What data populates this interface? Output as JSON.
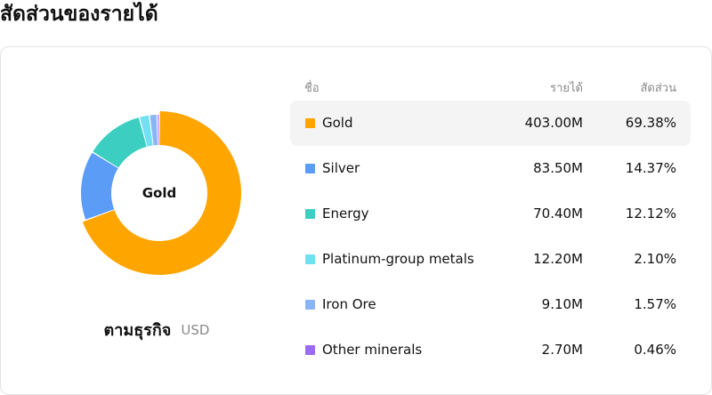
{
  "page": {
    "title": "สัดส่วนของรายได้"
  },
  "chart": {
    "center_label": "Gold",
    "caption": "ตามธุรกิจ",
    "unit": "USD"
  },
  "table": {
    "headers": {
      "name": "ชื่อ",
      "value": "รายได้",
      "share": "สัดส่วน"
    },
    "rows": [
      {
        "name": "Gold",
        "value": "403.00M",
        "share": "69.38%"
      },
      {
        "name": "Silver",
        "value": "83.50M",
        "share": "14.37%"
      },
      {
        "name": "Energy",
        "value": "70.40M",
        "share": "12.12%"
      },
      {
        "name": "Platinum-group metals",
        "value": "12.20M",
        "share": "2.10%"
      },
      {
        "name": "Iron Ore",
        "value": "9.10M",
        "share": "1.57%"
      },
      {
        "name": "Other minerals",
        "value": "2.70M",
        "share": "0.46%"
      }
    ]
  },
  "chart_data": {
    "type": "pie",
    "donut": true,
    "highlighted": "Gold",
    "categories": [
      "Gold",
      "Silver",
      "Energy",
      "Platinum-group metals",
      "Iron Ore",
      "Other minerals"
    ],
    "values": [
      403.0,
      83.5,
      70.4,
      12.2,
      9.1,
      2.7
    ],
    "shares_percent": [
      69.38,
      14.37,
      12.12,
      2.1,
      1.57,
      0.46
    ],
    "colors": [
      "#FFA500",
      "#5B9CF6",
      "#3CCFC1",
      "#71E0F2",
      "#8AB4F8",
      "#9B6CF0"
    ]
  }
}
